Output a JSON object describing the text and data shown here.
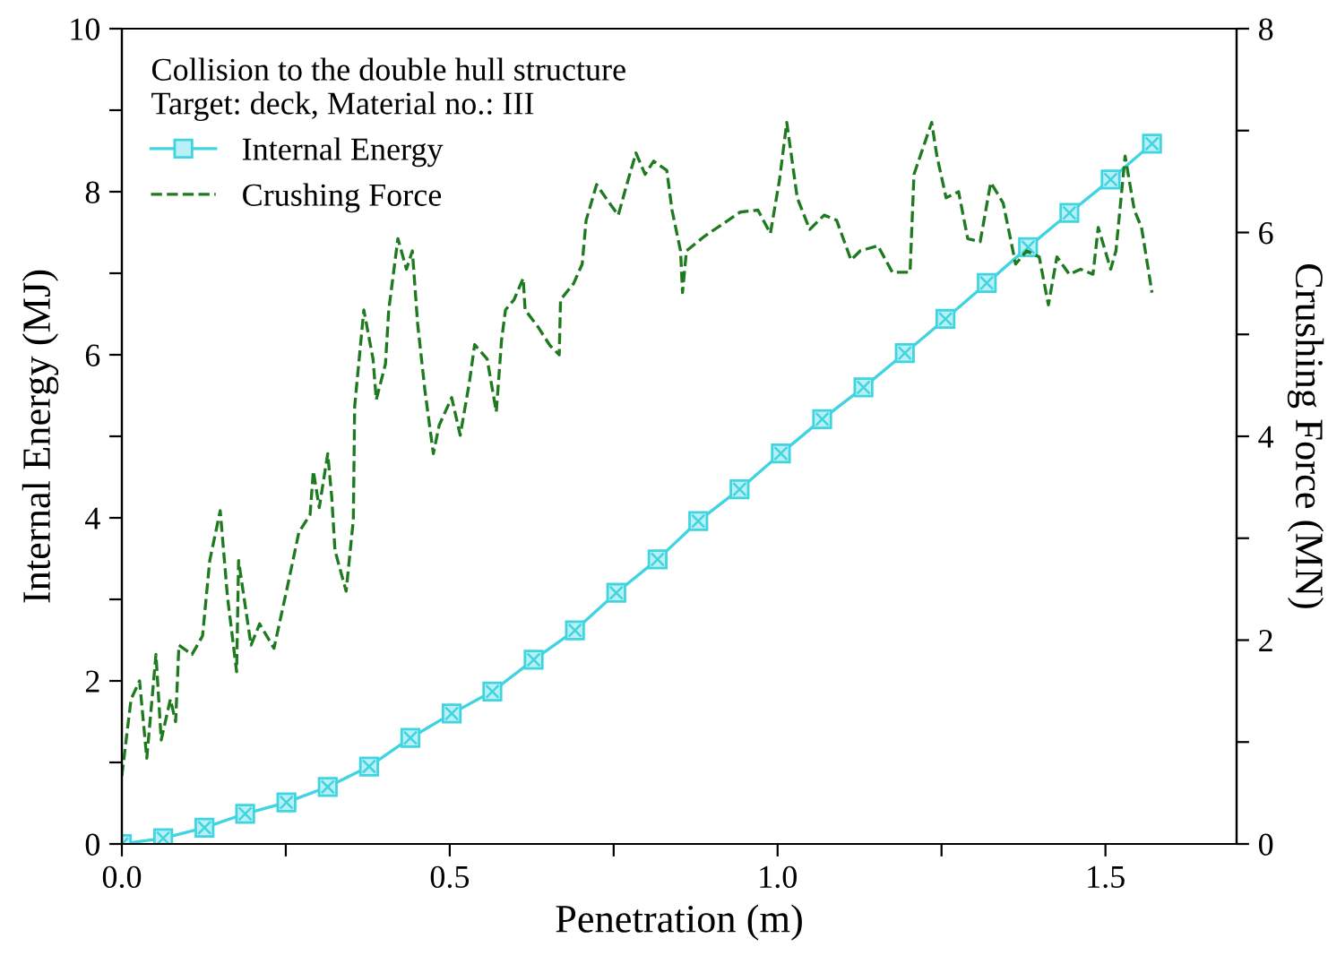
{
  "chart_data": {
    "type": "line",
    "xlabel": "Penetration (m)",
    "ylabel": "Internal Energy (MJ)",
    "y2label": "Crushing Force (MN)",
    "legend_title": "Collision to the double hull structure\nTarget: deck, Material no.: III",
    "legend": "top left",
    "grid": false,
    "xlim": [
      0,
      1.7
    ],
    "xticks": [
      {
        "value": 0,
        "label": "0.0"
      },
      {
        "value": 0.25,
        "label": null
      },
      {
        "value": 0.5,
        "label": "0.5"
      },
      {
        "value": 0.75,
        "label": null
      },
      {
        "value": 1.0,
        "label": "1.0"
      },
      {
        "value": 1.25,
        "label": null
      },
      {
        "value": 1.5,
        "label": "1.5"
      }
    ],
    "ylim": [
      0,
      10
    ],
    "yticks": [
      0,
      {
        "value": 1,
        "label": null
      },
      2,
      {
        "value": 3,
        "label": null
      },
      4,
      {
        "value": 5,
        "label": null
      },
      6,
      {
        "value": 7,
        "label": null
      },
      8,
      {
        "value": 9,
        "label": null
      },
      10
    ],
    "y2lim": [
      0,
      8
    ],
    "y2ticks": [
      0,
      {
        "value": 1,
        "label": null
      },
      2,
      {
        "value": 3,
        "label": null
      },
      4,
      {
        "value": 5,
        "label": null
      },
      6,
      {
        "value": 7,
        "label": null
      },
      8
    ],
    "series": [
      {
        "name": "Internal Energy",
        "color": "#3fd5e0",
        "marker": "square",
        "line_style": "solid",
        "x": [
          0,
          0.063,
          0.126,
          0.188,
          0.251,
          0.314,
          0.377,
          0.44,
          0.503,
          0.565,
          0.628,
          0.691,
          0.754,
          0.817,
          0.879,
          0.942,
          1.005,
          1.068,
          1.131,
          1.194,
          1.256,
          1.319,
          1.382,
          1.445,
          1.508,
          1.571
        ],
        "values": [
          0,
          0.07,
          0.2,
          0.37,
          0.51,
          0.7,
          0.95,
          1.3,
          1.6,
          1.87,
          2.26,
          2.62,
          3.08,
          3.49,
          3.96,
          4.35,
          4.79,
          5.21,
          5.6,
          6.02,
          6.44,
          6.88,
          7.32,
          7.74,
          8.15,
          8.59
        ]
      },
      {
        "name": "Crushing Force",
        "color": "#1e7a1e",
        "marker": "none",
        "line_style": "dashed",
        "axis": "y2",
        "x": [
          0,
          0.014,
          0.027,
          0.038,
          0.052,
          0.06,
          0.074,
          0.082,
          0.087,
          0.107,
          0.123,
          0.134,
          0.15,
          0.161,
          0.175,
          0.178,
          0.197,
          0.21,
          0.232,
          0.251,
          0.27,
          0.287,
          0.292,
          0.301,
          0.314,
          0.32,
          0.325,
          0.342,
          0.353,
          0.355,
          0.369,
          0.383,
          0.388,
          0.402,
          0.407,
          0.421,
          0.434,
          0.443,
          0.451,
          0.462,
          0.475,
          0.484,
          0.503,
          0.516,
          0.53,
          0.538,
          0.557,
          0.571,
          0.579,
          0.585,
          0.598,
          0.612,
          0.615,
          0.634,
          0.653,
          0.667,
          0.669,
          0.689,
          0.702,
          0.708,
          0.724,
          0.738,
          0.757,
          0.77,
          0.784,
          0.798,
          0.811,
          0.831,
          0.839,
          0.852,
          0.855,
          0.861,
          0.888,
          0.943,
          0.97,
          0.989,
          1.003,
          1.014,
          1.03,
          1.049,
          1.071,
          1.09,
          1.112,
          1.126,
          1.153,
          1.175,
          1.202,
          1.208,
          1.235,
          1.243,
          1.257,
          1.276,
          1.29,
          1.309,
          1.325,
          1.344,
          1.363,
          1.38,
          1.399,
          1.413,
          1.426,
          1.445,
          1.462,
          1.481,
          1.489,
          1.508,
          1.516,
          1.53,
          1.544,
          1.555,
          1.571
        ],
        "values": [
          0.67,
          1.42,
          1.6,
          0.84,
          1.86,
          1.02,
          1.42,
          1.2,
          1.95,
          1.86,
          2.04,
          2.78,
          3.27,
          2.43,
          1.69,
          2.78,
          1.95,
          2.16,
          1.92,
          2.48,
          3.06,
          3.23,
          3.66,
          3.3,
          3.83,
          3.41,
          2.88,
          2.48,
          3.18,
          4.29,
          5.24,
          4.76,
          4.36,
          4.71,
          5.24,
          5.94,
          5.64,
          5.82,
          5.11,
          4.46,
          3.83,
          4.11,
          4.38,
          4.01,
          4.53,
          4.9,
          4.76,
          4.24,
          4.94,
          5.24,
          5.34,
          5.55,
          5.24,
          5.08,
          4.89,
          4.8,
          5.34,
          5.5,
          5.69,
          6.12,
          6.47,
          6.34,
          6.17,
          6.47,
          6.78,
          6.57,
          6.7,
          6.61,
          6.22,
          5.82,
          5.41,
          5.82,
          5.96,
          6.2,
          6.22,
          5.99,
          6.52,
          7.08,
          6.34,
          6.03,
          6.17,
          6.12,
          5.73,
          5.82,
          5.87,
          5.61,
          5.61,
          6.57,
          7.08,
          6.75,
          6.34,
          6.4,
          5.94,
          5.91,
          6.49,
          6.29,
          5.69,
          5.82,
          5.76,
          5.29,
          5.76,
          5.59,
          5.64,
          5.59,
          6.05,
          5.64,
          5.82,
          6.75,
          6.22,
          6.05,
          5.41
        ]
      }
    ]
  }
}
